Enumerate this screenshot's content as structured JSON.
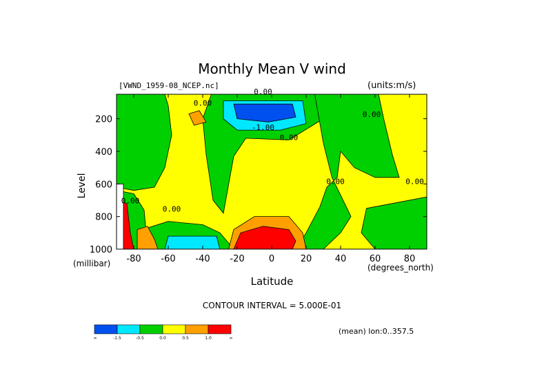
{
  "header": {
    "title": "Monthly Mean V wind",
    "dataset": "[VWND_1959-08_NCEP.nc]",
    "units": "(units:m/s)"
  },
  "axes": {
    "ylabel": "Level",
    "yunit": "(millibar)",
    "xlabel": "Latitude",
    "xunit": "(degrees_north)"
  },
  "contour_text": "CONTOUR INTERVAL = 5.000E-01",
  "footer": "(mean) lon:0..357.5",
  "chart_data": {
    "type": "heatmap",
    "title": "Monthly Mean V wind",
    "xlabel": "Latitude",
    "ylabel": "Level",
    "xlim": [
      -90,
      90
    ],
    "ylim": [
      1000,
      50
    ],
    "xticks": [
      -80,
      -60,
      -40,
      -20,
      0,
      20,
      40,
      60,
      80
    ],
    "yticks": [
      200,
      400,
      600,
      800,
      1000
    ],
    "contour_labels": [
      {
        "text": "0.00",
        "lat": -5,
        "lev": 50
      },
      {
        "text": "0.00",
        "lat": -40,
        "lev": 120
      },
      {
        "text": "-1.00",
        "lat": -5,
        "lev": 270
      },
      {
        "text": "0.00",
        "lat": 10,
        "lev": 330
      },
      {
        "text": "0.00",
        "lat": 58,
        "lev": 190
      },
      {
        "text": "0.00",
        "lat": 37,
        "lev": 600
      },
      {
        "text": "0.00",
        "lat": 83,
        "lev": 600
      },
      {
        "text": "0.00",
        "lat": -82,
        "lev": 720
      },
      {
        "text": "0.00",
        "lat": -58,
        "lev": 770
      }
    ],
    "colorbar": {
      "colors": [
        "#0050f0",
        "#00e8ff",
        "#00d000",
        "#ffff00",
        "#ffa000",
        "#ff0000"
      ],
      "labels": [
        "-∞",
        "-1.5",
        "-0.5",
        "0.0",
        "0.5",
        "1.0",
        "∞"
      ]
    },
    "grid": false
  },
  "colors": {
    "lev_neg2": "#0050f0",
    "lev_neg1": "#00e8ff",
    "lev_neg0": "#00d000",
    "lev_pos0": "#ffff00",
    "lev_pos1": "#ffa000",
    "lev_pos2": "#ff0000"
  }
}
